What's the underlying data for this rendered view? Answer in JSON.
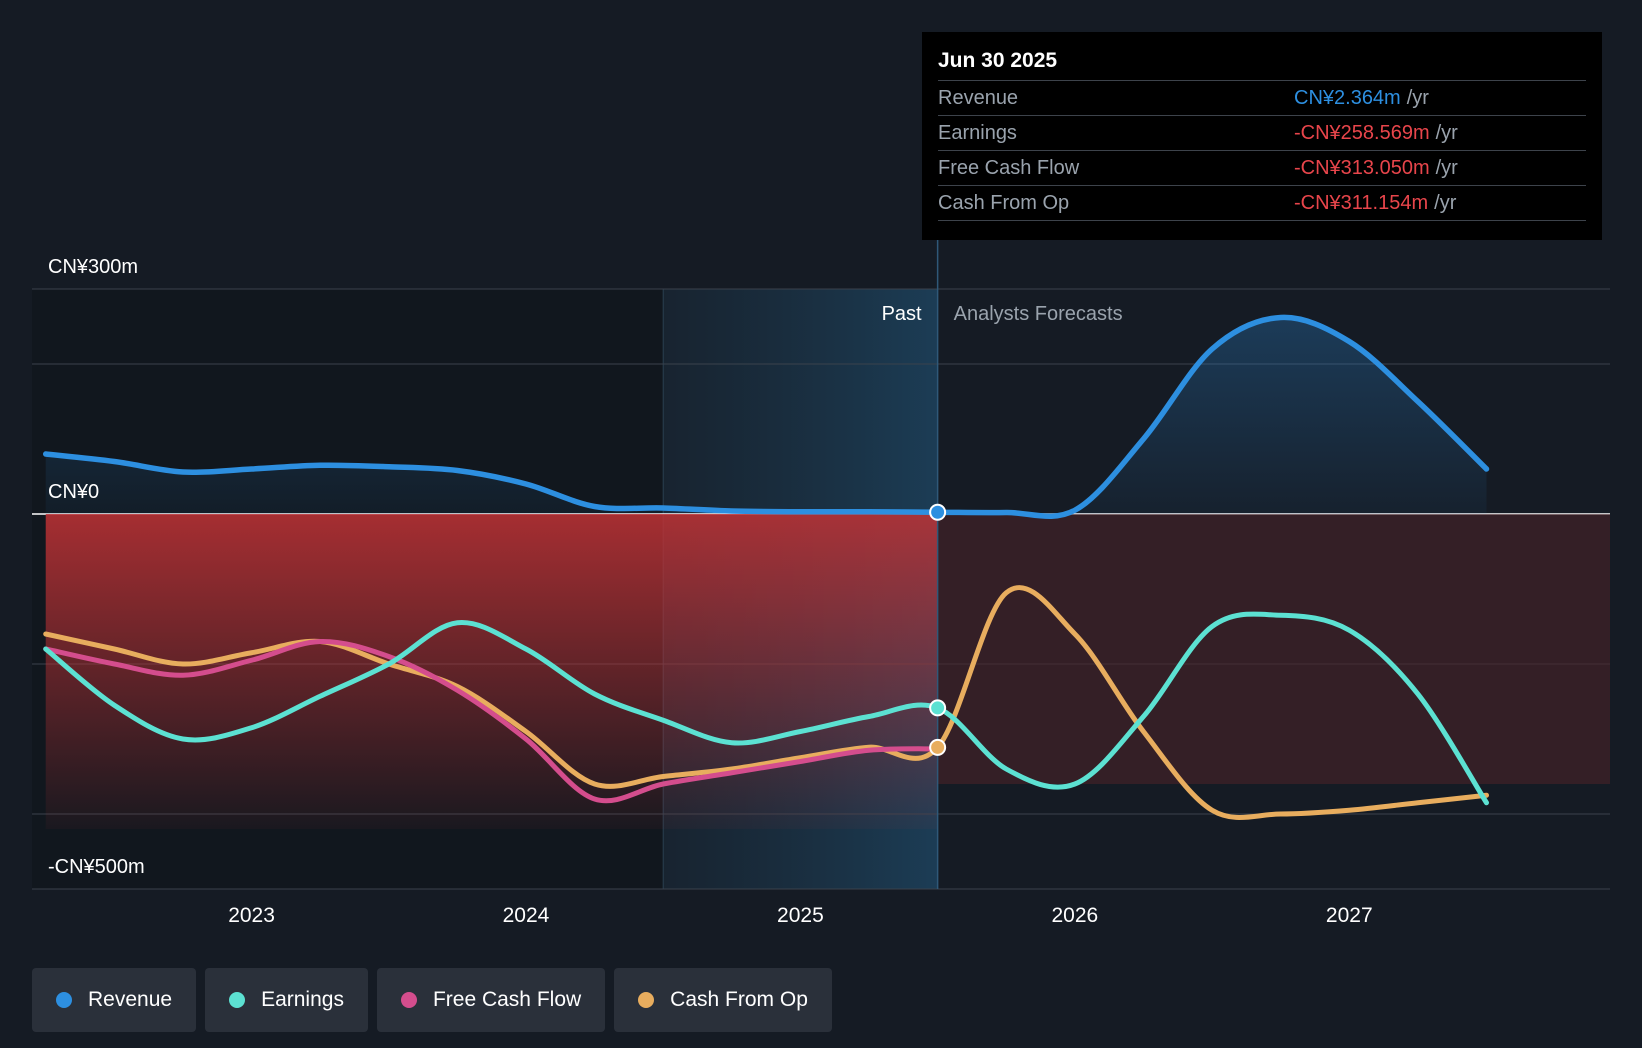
{
  "chart_data": {
    "type": "line",
    "y_unit": "CN¥m",
    "ylim": [
      -500,
      300
    ],
    "y_tick_labels": [
      {
        "value": 300,
        "label": "CN¥300m"
      },
      {
        "value": 0,
        "label": "CN¥0"
      },
      {
        "value": -500,
        "label": "-CN¥500m"
      }
    ],
    "gridlines": [
      300,
      200,
      0,
      -200,
      -400,
      -500
    ],
    "xlim": [
      2022.2,
      2027.95
    ],
    "x_ticks": [
      {
        "value": 2023,
        "label": "2023"
      },
      {
        "value": 2024,
        "label": "2024"
      },
      {
        "value": 2025,
        "label": "2025"
      },
      {
        "value": 2026,
        "label": "2026"
      },
      {
        "value": 2027,
        "label": "2027"
      }
    ],
    "shaded_past_start": 2024.5,
    "divider_x": 2025.5,
    "past_label": "Past",
    "forecast_label": "Analysts Forecasts",
    "series": [
      {
        "name": "Revenue",
        "key": "revenue",
        "color": "#2d8fe0",
        "points": [
          [
            2022.25,
            80
          ],
          [
            2022.5,
            70
          ],
          [
            2022.75,
            56
          ],
          [
            2023.0,
            60
          ],
          [
            2023.25,
            65
          ],
          [
            2023.5,
            63
          ],
          [
            2023.75,
            58
          ],
          [
            2024.0,
            40
          ],
          [
            2024.25,
            10
          ],
          [
            2024.5,
            8
          ],
          [
            2024.75,
            4
          ],
          [
            2025.0,
            3
          ],
          [
            2025.25,
            3
          ],
          [
            2025.5,
            2.364
          ],
          [
            2025.75,
            2
          ],
          [
            2026.0,
            5
          ],
          [
            2026.25,
            100
          ],
          [
            2026.5,
            220
          ],
          [
            2026.75,
            262
          ],
          [
            2027.0,
            230
          ],
          [
            2027.25,
            150
          ],
          [
            2027.5,
            60
          ]
        ]
      },
      {
        "name": "Earnings",
        "key": "earnings",
        "color": "#5ce1d2",
        "points": [
          [
            2022.25,
            -180
          ],
          [
            2022.5,
            -255
          ],
          [
            2022.75,
            -300
          ],
          [
            2023.0,
            -285
          ],
          [
            2023.25,
            -243
          ],
          [
            2023.5,
            -200
          ],
          [
            2023.75,
            -145
          ],
          [
            2024.0,
            -180
          ],
          [
            2024.25,
            -240
          ],
          [
            2024.5,
            -275
          ],
          [
            2024.75,
            -305
          ],
          [
            2025.0,
            -290
          ],
          [
            2025.25,
            -270
          ],
          [
            2025.5,
            -258.569
          ],
          [
            2025.75,
            -340
          ],
          [
            2026.0,
            -360
          ],
          [
            2026.25,
            -270
          ],
          [
            2026.5,
            -150
          ],
          [
            2026.75,
            -135
          ],
          [
            2027.0,
            -155
          ],
          [
            2027.25,
            -240
          ],
          [
            2027.5,
            -385
          ]
        ]
      },
      {
        "name": "Free Cash Flow",
        "key": "fcf",
        "color": "#d44d8d",
        "points": [
          [
            2022.25,
            -180
          ],
          [
            2022.5,
            -200
          ],
          [
            2022.75,
            -215
          ],
          [
            2023.0,
            -195
          ],
          [
            2023.25,
            -170
          ],
          [
            2023.5,
            -190
          ],
          [
            2023.75,
            -235
          ],
          [
            2024.0,
            -300
          ],
          [
            2024.25,
            -380
          ],
          [
            2024.5,
            -360
          ],
          [
            2024.75,
            -345
          ],
          [
            2025.0,
            -330
          ],
          [
            2025.25,
            -315
          ],
          [
            2025.5,
            -313.05
          ]
        ]
      },
      {
        "name": "Cash From Op",
        "key": "cfo",
        "color": "#e8ad5e",
        "points": [
          [
            2022.25,
            -160
          ],
          [
            2022.5,
            -180
          ],
          [
            2022.75,
            -200
          ],
          [
            2023.0,
            -185
          ],
          [
            2023.25,
            -170
          ],
          [
            2023.5,
            -200
          ],
          [
            2023.75,
            -230
          ],
          [
            2024.0,
            -290
          ],
          [
            2024.25,
            -360
          ],
          [
            2024.5,
            -350
          ],
          [
            2024.75,
            -340
          ],
          [
            2025.0,
            -325
          ],
          [
            2025.25,
            -311
          ],
          [
            2025.5,
            -311.154
          ],
          [
            2025.75,
            -105
          ],
          [
            2026.0,
            -160
          ],
          [
            2026.25,
            -290
          ],
          [
            2026.5,
            -395
          ],
          [
            2026.75,
            -400
          ],
          [
            2027.0,
            -395
          ],
          [
            2027.25,
            -385
          ],
          [
            2027.5,
            -375
          ]
        ]
      }
    ]
  },
  "tooltip": {
    "date": "Jun 30 2025",
    "rows": [
      {
        "name": "Revenue",
        "value": "CN¥2.364m",
        "unit": "/yr",
        "color": "#2d8fe0"
      },
      {
        "name": "Earnings",
        "value": "-CN¥258.569m",
        "unit": "/yr",
        "color": "#e8454b"
      },
      {
        "name": "Free Cash Flow",
        "value": "-CN¥313.050m",
        "unit": "/yr",
        "color": "#e8454b"
      },
      {
        "name": "Cash From Op",
        "value": "-CN¥311.154m",
        "unit": "/yr",
        "color": "#e8454b"
      }
    ]
  },
  "legend": [
    {
      "label": "Revenue",
      "color": "#2d8fe0"
    },
    {
      "label": "Earnings",
      "color": "#5ce1d2"
    },
    {
      "label": "Free Cash Flow",
      "color": "#d44d8d"
    },
    {
      "label": "Cash From Op",
      "color": "#e8ad5e"
    }
  ]
}
